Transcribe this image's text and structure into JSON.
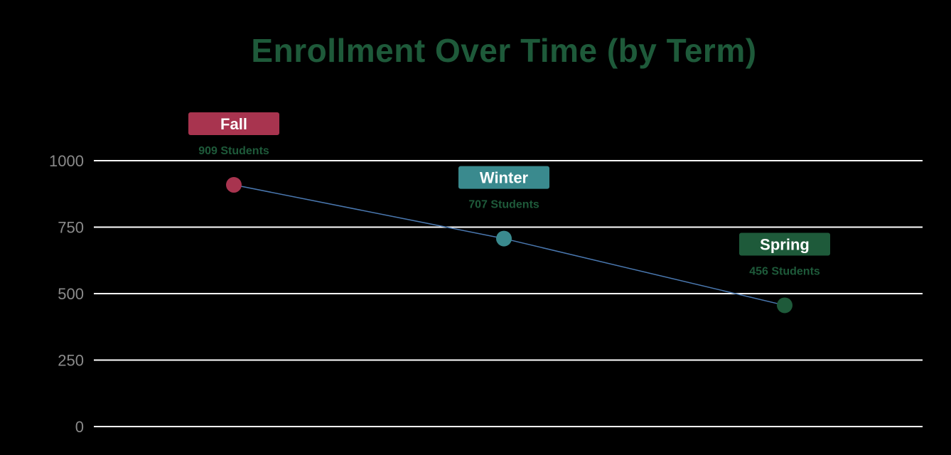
{
  "chart_data": {
    "type": "line",
    "title": "Enrollment Over Time (by Term)",
    "categories": [
      "Fall",
      "Winter",
      "Spring"
    ],
    "values": [
      909,
      707,
      456
    ],
    "value_labels": [
      "909 Students",
      "707 Students",
      "456 Students"
    ],
    "point_colors": [
      "#a8344f",
      "#3a8a8e",
      "#1e5a3a"
    ],
    "line_color": "#4a78b0",
    "label_text_color": "#1e5a3a",
    "yticks": [
      0,
      250,
      500,
      750,
      1000
    ],
    "ylim": [
      0,
      1000
    ],
    "grid": true,
    "legend": "none"
  }
}
